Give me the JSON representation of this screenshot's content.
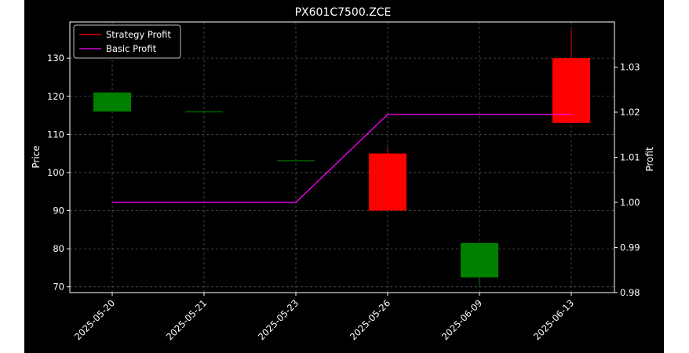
{
  "chart_data": {
    "type": "candlestick",
    "title": "PX601C7500.ZCE",
    "xlabel": "",
    "ylabel": "Price",
    "y2label": "Profit",
    "ylim": [
      68.5,
      139.5
    ],
    "y2lim": [
      0.98,
      1.04
    ],
    "yticks": [
      70,
      80,
      90,
      100,
      110,
      120,
      130
    ],
    "y2ticks": [
      "0.98",
      "0.99",
      "1.00",
      "1.01",
      "1.02",
      "1.03"
    ],
    "grid": true,
    "legend_position": "top-left",
    "categories": [
      "2025-05-20",
      "2025-05-21",
      "2025-05-23",
      "2025-05-26",
      "2025-06-09",
      "2025-06-13"
    ],
    "candles": [
      {
        "date": "2025-05-20",
        "open": 116.0,
        "high": 121.0,
        "low": 116.0,
        "close": 121.0
      },
      {
        "date": "2025-05-21",
        "open": 116.0,
        "high": 116.0,
        "low": 116.0,
        "close": 116.0
      },
      {
        "date": "2025-05-23",
        "open": 103.2,
        "high": 103.2,
        "low": 103.2,
        "close": 103.2
      },
      {
        "date": "2025-05-26",
        "open": 105.0,
        "high": 106.5,
        "low": 90.0,
        "close": 90.0
      },
      {
        "date": "2025-06-09",
        "open": 72.5,
        "high": 81.5,
        "low": 70.5,
        "close": 81.5
      },
      {
        "date": "2025-06-13",
        "open": 130.0,
        "high": 137.5,
        "low": 113.0,
        "close": 113.0
      }
    ],
    "series": [
      {
        "name": "Strategy Profit",
        "color": "#ff0000",
        "axis": "right",
        "values": [
          null,
          null,
          null,
          null,
          null,
          null
        ]
      },
      {
        "name": "Basic Profit",
        "color": "#ff00ff",
        "axis": "right",
        "values": [
          1.0,
          1.0,
          1.0,
          1.0195,
          1.0195,
          1.0195
        ]
      }
    ],
    "up_color": "#008000",
    "down_color": "#ff0000",
    "background": "#000000",
    "grid_color": "#555555"
  }
}
